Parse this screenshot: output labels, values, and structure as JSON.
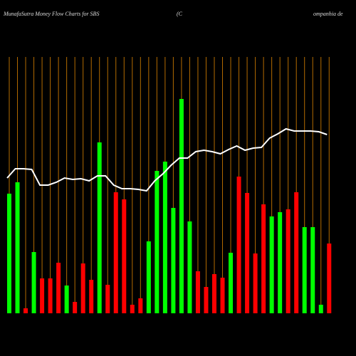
{
  "chart_data": {
    "type": "bar",
    "title": "MunafaSutra  Money  Flow  Charts for SBS",
    "subtitle": "(C",
    "subtitle_tail": "ompanhia  de",
    "categories": [
      null,
      null,
      null,
      null,
      null,
      null,
      null,
      null,
      null,
      null,
      null,
      null,
      null,
      null,
      null,
      null,
      null,
      null,
      null,
      null,
      null,
      null,
      null,
      null,
      null,
      null,
      null,
      null,
      null,
      null,
      null,
      null,
      null,
      null,
      null,
      null,
      null,
      null,
      null,
      null
    ],
    "values": [
      168,
      184,
      7,
      86,
      49,
      49,
      71,
      39,
      16,
      70,
      47,
      240,
      40,
      170,
      160,
      12,
      21,
      101,
      200,
      213,
      148,
      301,
      129,
      59,
      37,
      55,
      50,
      85,
      192,
      169,
      84,
      153,
      136,
      142,
      146,
      170,
      121,
      121,
      12,
      98
    ],
    "colors": [
      "#00ff00",
      "#00ff00",
      "#ff0000",
      "#00ff00",
      "#ff0000",
      "#ff0000",
      "#ff0000",
      "#00ff00",
      "#ff0000",
      "#ff0000",
      "#ff0000",
      "#00ff00",
      "#ff0000",
      "#ff0000",
      "#ff0000",
      "#ff0000",
      "#ff0000",
      "#00ff00",
      "#00ff00",
      "#00ff00",
      "#00ff00",
      "#00ff00",
      "#00ff00",
      "#ff0000",
      "#ff0000",
      "#ff0000",
      "#ff0000",
      "#00ff00",
      "#ff0000",
      "#ff0000",
      "#ff0000",
      "#ff0000",
      "#00ff00",
      "#00ff00",
      "#ff0000",
      "#ff0000",
      "#00ff00",
      "#00ff00",
      "#00ff00",
      "#ff0000"
    ],
    "line_values": [
      190,
      203,
      203,
      202,
      180,
      180,
      184,
      190,
      188,
      189,
      186,
      193,
      193,
      180,
      175,
      175,
      174,
      172,
      186,
      196,
      208,
      218,
      218,
      227,
      229,
      227,
      224,
      230,
      235,
      229,
      232,
      233,
      246,
      252,
      259,
      256,
      256,
      256,
      255,
      251
    ],
    "line_color": "#ffffff",
    "gridline_color": "#b36b00",
    "ylim": [
      0,
      360
    ]
  }
}
